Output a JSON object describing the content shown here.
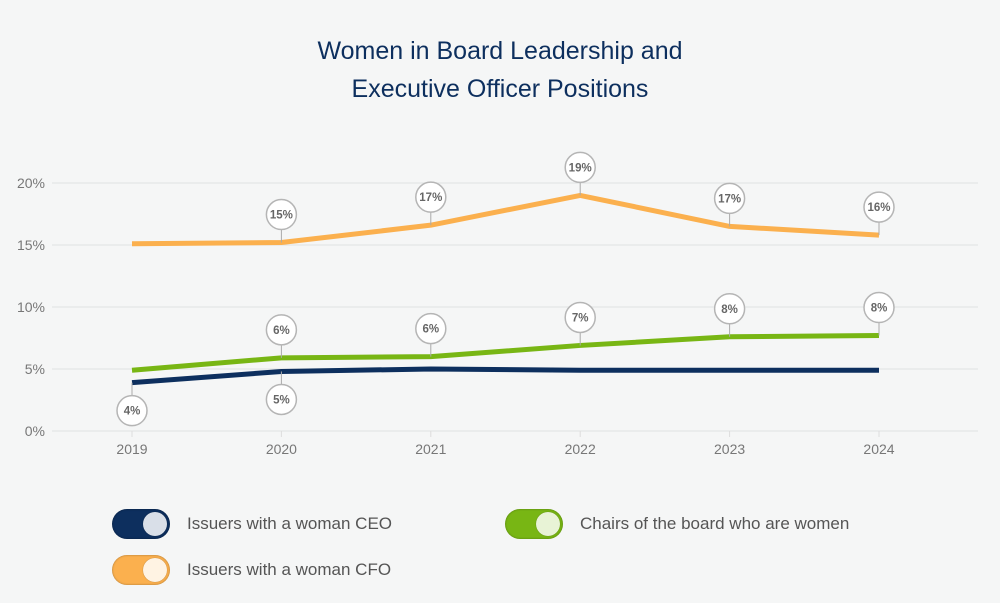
{
  "chart_data": {
    "type": "line",
    "title": [
      "Women in Board Leadership and",
      "Executive Officer Positions"
    ],
    "xlabel": "",
    "ylabel": "",
    "x": [
      "2019",
      "2020",
      "2021",
      "2022",
      "2023",
      "2024"
    ],
    "ylim": [
      0,
      20
    ],
    "yticks": [
      0,
      5,
      10,
      15,
      20
    ],
    "ytick_labels": [
      "0%",
      "5%",
      "10%",
      "15%",
      "20%"
    ],
    "grid": true,
    "legend_position": "bottom",
    "series": [
      {
        "name": "Issuers with a woman CFO",
        "color": "#fbb04e",
        "knob_color": "#fff3e3",
        "values": [
          15.1,
          15.2,
          16.6,
          19.0,
          16.5,
          15.8
        ],
        "labels": [
          null,
          "15%",
          "17%",
          "19%",
          "17%",
          "16%"
        ],
        "label_side": "above"
      },
      {
        "name": "Chairs of the board who are women",
        "color": "#78b614",
        "knob_color": "#e8f3d6",
        "values": [
          4.9,
          5.9,
          6.0,
          6.9,
          7.6,
          7.7
        ],
        "labels": [
          null,
          "6%",
          "6%",
          "7%",
          "8%",
          "8%"
        ],
        "label_side": "above"
      },
      {
        "name": "Issuers with a woman CEO",
        "color": "#0d2f5e",
        "knob_color": "#d9dfe8",
        "values": [
          3.9,
          4.8,
          5.0,
          4.9,
          4.9,
          4.9
        ],
        "labels": [
          "4%",
          "5%",
          null,
          null,
          null,
          null
        ],
        "label_side": "below"
      }
    ]
  },
  "legend": [
    {
      "label": "Issuers with a woman CEO",
      "series": 2
    },
    {
      "label": "Chairs of the board who are women",
      "series": 1
    },
    {
      "label": "Issuers with a woman CFO",
      "series": 0
    }
  ]
}
